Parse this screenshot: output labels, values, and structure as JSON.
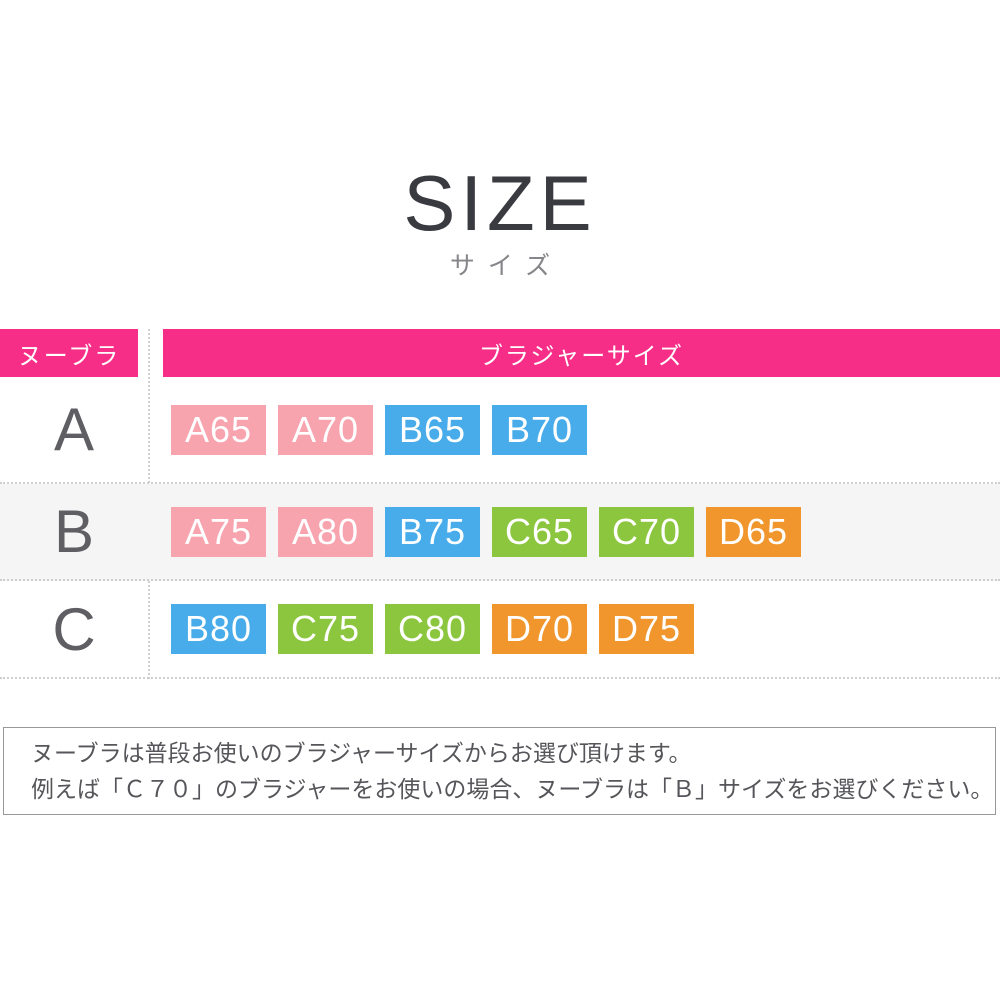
{
  "header": {
    "title": "SIZE",
    "subtitle": "サイズ"
  },
  "table": {
    "header": {
      "left": "ヌーブラ",
      "right": "ブラジャーサイズ"
    },
    "rows": [
      {
        "label": "A",
        "chips": [
          {
            "text": "A65",
            "color": "pink"
          },
          {
            "text": "A70",
            "color": "pink"
          },
          {
            "text": "B65",
            "color": "blue"
          },
          {
            "text": "B70",
            "color": "blue"
          }
        ]
      },
      {
        "label": "B",
        "chips": [
          {
            "text": "A75",
            "color": "pink"
          },
          {
            "text": "A80",
            "color": "pink"
          },
          {
            "text": "B75",
            "color": "blue"
          },
          {
            "text": "C65",
            "color": "green"
          },
          {
            "text": "C70",
            "color": "green"
          },
          {
            "text": "D65",
            "color": "orange"
          }
        ]
      },
      {
        "label": "C",
        "chips": [
          {
            "text": "B80",
            "color": "blue"
          },
          {
            "text": "C75",
            "color": "green"
          },
          {
            "text": "C80",
            "color": "green"
          },
          {
            "text": "D70",
            "color": "orange"
          },
          {
            "text": "D75",
            "color": "orange"
          }
        ]
      }
    ]
  },
  "note": {
    "lines": [
      "ヌーブラは普段お使いのブラジャーサイズからお選び頂けます。",
      "例えば「Ｃ７０」のブラジャーをお使いの場合、ヌーブラは「Ｂ」サイズをお選びください。"
    ]
  },
  "colors": {
    "header_pink": "#F62E87",
    "pink": "#F8A4AF",
    "blue": "#48ACEA",
    "green": "#8CC63E",
    "orange": "#F0962D"
  },
  "chart_data": {
    "type": "table",
    "title": "SIZE",
    "subtitle": "サイズ",
    "columns": [
      "ヌーブラ",
      "ブラジャーサイズ"
    ],
    "rows": [
      {
        "nubra_size": "A",
        "bra_sizes": [
          "A65",
          "A70",
          "B65",
          "B70"
        ]
      },
      {
        "nubra_size": "B",
        "bra_sizes": [
          "A75",
          "A80",
          "B75",
          "C65",
          "C70",
          "D65"
        ]
      },
      {
        "nubra_size": "C",
        "bra_sizes": [
          "B80",
          "C75",
          "C80",
          "D70",
          "D75"
        ]
      }
    ],
    "color_coding": {
      "A_cup": "#F8A4AF",
      "B_cup": "#48ACEA",
      "C_cup": "#8CC63E",
      "D_cup": "#F0962D"
    },
    "layout_hints": {
      "header_background": "#F62E87",
      "alternate_row_background": "#F5F5F6",
      "dividers": "dotted"
    }
  }
}
